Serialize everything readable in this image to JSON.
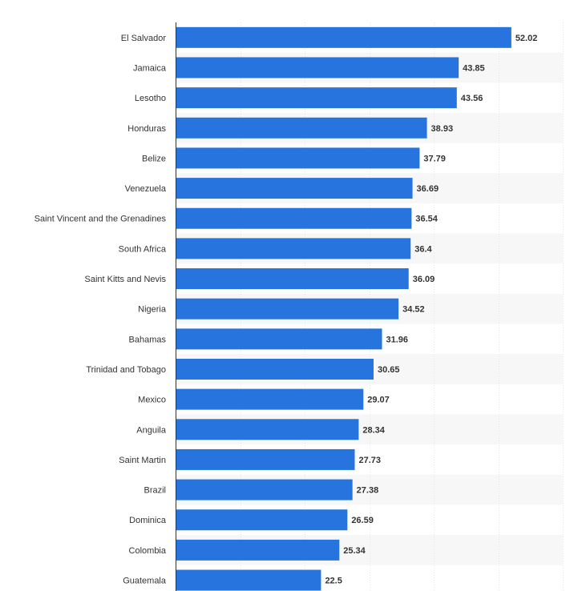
{
  "chart_data": {
    "type": "bar",
    "orientation": "horizontal",
    "categories": [
      "El Salvador",
      "Jamaica",
      "Lesotho",
      "Honduras",
      "Belize",
      "Venezuela",
      "Saint Vincent and the Grenadines",
      "South Africa",
      "Saint Kitts and Nevis",
      "Nigeria",
      "Bahamas",
      "Trinidad and Tobago",
      "Mexico",
      "Anguila",
      "Saint Martin",
      "Brazil",
      "Dominica",
      "Colombia",
      "Guatemala"
    ],
    "values": [
      52.02,
      43.85,
      43.56,
      38.93,
      37.79,
      36.69,
      36.54,
      36.4,
      36.09,
      34.52,
      31.96,
      30.65,
      29.07,
      28.34,
      27.73,
      27.38,
      26.59,
      25.34,
      22.5
    ],
    "value_labels": [
      "52.02",
      "43.85",
      "43.56",
      "38.93",
      "37.79",
      "36.69",
      "36.54",
      "36.4",
      "36.09",
      "34.52",
      "31.96",
      "30.65",
      "29.07",
      "28.34",
      "27.73",
      "27.38",
      "26.59",
      "25.34",
      "22.5"
    ],
    "xlim": [
      0,
      60
    ],
    "grid": true,
    "bar_color": "#2774de",
    "stripe_color": "#f7f7f7",
    "title": "",
    "xlabel": "",
    "ylabel": ""
  }
}
